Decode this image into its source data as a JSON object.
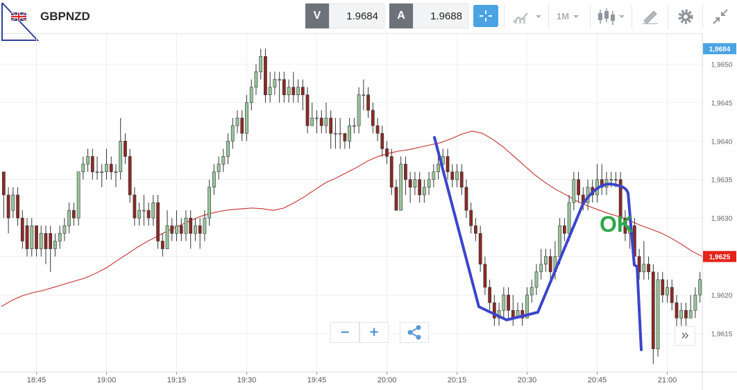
{
  "header": {
    "symbol": "GBPNZD",
    "bid_label": "V",
    "bid_value": "1.9684",
    "ask_label": "A",
    "ask_value": "1.9688",
    "timeframe": "1M",
    "icons": [
      "uk-flag-icon",
      "crosshair-icon",
      "chart-type-icon",
      "candlestick-icon",
      "drawing-tools-icon",
      "gear-icon",
      "collapse-icon"
    ]
  },
  "chart_data": {
    "type": "candlestick",
    "x_ticks": [
      "18:45",
      "19:00",
      "19:15",
      "19:30",
      "19:45",
      "20:00",
      "20:15",
      "20:30",
      "20:45",
      "21:00"
    ],
    "y_ticks": [
      "1,9615",
      "1,9620",
      "1,9625",
      "1,9630",
      "1,9635",
      "1,9640",
      "1,9645",
      "1,9650"
    ],
    "ylim": [
      1.961,
      1.9654
    ],
    "price_labels": [
      {
        "text": "1,9684",
        "value": 1.9652,
        "color": "#4ba3e3"
      },
      {
        "text": "1,9625",
        "value": 1.9625,
        "color": "#e3241b"
      }
    ],
    "candles": [
      [
        1.9636,
        1.9633,
        1.9636,
        1.963
      ],
      [
        1.9633,
        1.963,
        1.9634,
        1.9628
      ],
      [
        1.9631,
        1.9633,
        1.9634,
        1.963
      ],
      [
        1.9633,
        1.963,
        1.9634,
        1.9629
      ],
      [
        1.963,
        1.9627,
        1.9631,
        1.9626
      ],
      [
        1.9629,
        1.9626,
        1.963,
        1.9625
      ],
      [
        1.9626,
        1.9629,
        1.963,
        1.9625
      ],
      [
        1.9629,
        1.9626,
        1.9629,
        1.9625
      ],
      [
        1.9626,
        1.9628,
        1.9629,
        1.9625
      ],
      [
        1.9628,
        1.9626,
        1.9629,
        1.9624
      ],
      [
        1.9628,
        1.9626,
        1.9629,
        1.9623
      ],
      [
        1.9626,
        1.9627,
        1.9628,
        1.9625
      ],
      [
        1.9627,
        1.9628,
        1.9629,
        1.9626
      ],
      [
        1.9628,
        1.9629,
        1.963,
        1.9627
      ],
      [
        1.9629,
        1.9631,
        1.9632,
        1.9628
      ],
      [
        1.9631,
        1.963,
        1.9632,
        1.9629
      ],
      [
        1.963,
        1.9636,
        1.9636,
        1.9629
      ],
      [
        1.9636,
        1.9637,
        1.9638,
        1.9635
      ],
      [
        1.9637,
        1.9638,
        1.9639,
        1.9636
      ],
      [
        1.9638,
        1.9636,
        1.9639,
        1.9635
      ],
      [
        1.9636,
        1.9636,
        1.9638,
        1.9635
      ],
      [
        1.9636,
        1.9636,
        1.9637,
        1.9634
      ],
      [
        1.9636,
        1.9637,
        1.9639,
        1.9635
      ],
      [
        1.9637,
        1.9636,
        1.9638,
        1.9635
      ],
      [
        1.9636,
        1.9636,
        1.9637,
        1.9634
      ],
      [
        1.9636,
        1.964,
        1.9643,
        1.9635
      ],
      [
        1.964,
        1.9638,
        1.9641,
        1.9637
      ],
      [
        1.9638,
        1.9633,
        1.9639,
        1.9632
      ],
      [
        1.9633,
        1.963,
        1.9634,
        1.9629
      ],
      [
        1.963,
        1.9631,
        1.9632,
        1.9629
      ],
      [
        1.9631,
        1.9631,
        1.9633,
        1.9629
      ],
      [
        1.9631,
        1.963,
        1.9632,
        1.9629
      ],
      [
        1.963,
        1.9632,
        1.9633,
        1.9629
      ],
      [
        1.9632,
        1.9627,
        1.9633,
        1.9626
      ],
      [
        1.9627,
        1.9626,
        1.9628,
        1.9625
      ],
      [
        1.9626,
        1.9629,
        1.9631,
        1.9626
      ],
      [
        1.9629,
        1.9628,
        1.963,
        1.9627
      ],
      [
        1.9628,
        1.9629,
        1.9631,
        1.9627
      ],
      [
        1.9629,
        1.9628,
        1.963,
        1.9627
      ],
      [
        1.9628,
        1.963,
        1.9631,
        1.9627
      ],
      [
        1.963,
        1.9628,
        1.9631,
        1.9626
      ],
      [
        1.9628,
        1.9629,
        1.963,
        1.9627
      ],
      [
        1.9629,
        1.9628,
        1.963,
        1.9626
      ],
      [
        1.9628,
        1.963,
        1.9631,
        1.9627
      ],
      [
        1.963,
        1.9634,
        1.9635,
        1.9629
      ],
      [
        1.9634,
        1.9636,
        1.9637,
        1.9633
      ],
      [
        1.9636,
        1.9637,
        1.9638,
        1.9635
      ],
      [
        1.9637,
        1.9638,
        1.9639,
        1.9636
      ],
      [
        1.9638,
        1.964,
        1.9641,
        1.9637
      ],
      [
        1.964,
        1.9642,
        1.9643,
        1.9639
      ],
      [
        1.9642,
        1.9643,
        1.9644,
        1.9641
      ],
      [
        1.9643,
        1.9641,
        1.9644,
        1.964
      ],
      [
        1.9641,
        1.9645,
        1.9646,
        1.964
      ],
      [
        1.9645,
        1.9647,
        1.9648,
        1.9644
      ],
      [
        1.9647,
        1.9649,
        1.965,
        1.9646
      ],
      [
        1.9649,
        1.9651,
        1.9652,
        1.9648
      ],
      [
        1.9651,
        1.9646,
        1.9652,
        1.9645
      ],
      [
        1.9646,
        1.9647,
        1.9649,
        1.9645
      ],
      [
        1.9647,
        1.9648,
        1.9649,
        1.9646
      ],
      [
        1.9648,
        1.9648,
        1.9649,
        1.9645
      ],
      [
        1.9648,
        1.9646,
        1.9649,
        1.9645
      ],
      [
        1.9646,
        1.9647,
        1.9648,
        1.9645
      ],
      [
        1.9647,
        1.9646,
        1.9649,
        1.9645
      ],
      [
        1.9646,
        1.9647,
        1.9648,
        1.9645
      ],
      [
        1.9647,
        1.9646,
        1.9648,
        1.9644
      ],
      [
        1.9646,
        1.9642,
        1.9647,
        1.9641
      ],
      [
        1.9642,
        1.9643,
        1.9645,
        1.9642
      ],
      [
        1.9643,
        1.9643,
        1.9644,
        1.9641
      ],
      [
        1.9643,
        1.9642,
        1.9644,
        1.9641
      ],
      [
        1.9642,
        1.9643,
        1.9645,
        1.9641
      ],
      [
        1.9643,
        1.9641,
        1.9644,
        1.9639
      ],
      [
        1.9641,
        1.9641,
        1.9643,
        1.9639
      ],
      [
        1.9641,
        1.9641,
        1.9643,
        1.9639
      ],
      [
        1.9641,
        1.964,
        1.9641,
        1.9639
      ],
      [
        1.964,
        1.9642,
        1.9643,
        1.9639
      ],
      [
        1.9642,
        1.9642,
        1.9643,
        1.9641
      ],
      [
        1.9642,
        1.9646,
        1.9647,
        1.9641
      ],
      [
        1.9646,
        1.9646,
        1.9648,
        1.9644
      ],
      [
        1.9646,
        1.9644,
        1.9647,
        1.9643
      ],
      [
        1.9644,
        1.9642,
        1.9645,
        1.9641
      ],
      [
        1.9642,
        1.9641,
        1.9643,
        1.964
      ],
      [
        1.9641,
        1.9639,
        1.9642,
        1.9638
      ],
      [
        1.9639,
        1.9638,
        1.964,
        1.9637
      ],
      [
        1.9638,
        1.9634,
        1.9639,
        1.9633
      ],
      [
        1.9634,
        1.9631,
        1.9635,
        1.9631
      ],
      [
        1.9631,
        1.9637,
        1.9638,
        1.9631
      ],
      [
        1.9637,
        1.9635,
        1.9638,
        1.9633
      ],
      [
        1.9635,
        1.9634,
        1.9636,
        1.9632
      ],
      [
        1.9634,
        1.9635,
        1.9636,
        1.9633
      ],
      [
        1.9635,
        1.9633,
        1.9636,
        1.9632
      ],
      [
        1.9633,
        1.9634,
        1.9635,
        1.9632
      ],
      [
        1.9634,
        1.9635,
        1.9636,
        1.9633
      ],
      [
        1.9635,
        1.9636,
        1.9637,
        1.9634
      ],
      [
        1.9636,
        1.9637,
        1.9639,
        1.9635
      ],
      [
        1.9637,
        1.9638,
        1.9639,
        1.9636
      ],
      [
        1.9638,
        1.9636,
        1.9639,
        1.9635
      ],
      [
        1.9636,
        1.9635,
        1.9637,
        1.9634
      ],
      [
        1.9635,
        1.9636,
        1.9637,
        1.9634
      ],
      [
        1.9636,
        1.9634,
        1.9637,
        1.9633
      ],
      [
        1.9634,
        1.9631,
        1.9635,
        1.963
      ],
      [
        1.9631,
        1.9629,
        1.9632,
        1.9628
      ],
      [
        1.9629,
        1.9628,
        1.963,
        1.9627
      ],
      [
        1.9628,
        1.9624,
        1.9629,
        1.9623
      ],
      [
        1.9624,
        1.9621,
        1.9625,
        1.962
      ],
      [
        1.9621,
        1.9619,
        1.9622,
        1.9618
      ],
      [
        1.9619,
        1.9617,
        1.962,
        1.9616
      ],
      [
        1.9617,
        1.9618,
        1.9619,
        1.9616
      ],
      [
        1.9618,
        1.962,
        1.9621,
        1.9617
      ],
      [
        1.962,
        1.9618,
        1.9621,
        1.9617
      ],
      [
        1.9618,
        1.9617,
        1.962,
        1.9616
      ],
      [
        1.9617,
        1.9618,
        1.9619,
        1.9617
      ],
      [
        1.9618,
        1.9617,
        1.9619,
        1.9616
      ],
      [
        1.9617,
        1.962,
        1.9621,
        1.9617
      ],
      [
        1.962,
        1.9621,
        1.9622,
        1.9619
      ],
      [
        1.9621,
        1.9623,
        1.9624,
        1.962
      ],
      [
        1.9623,
        1.9624,
        1.9626,
        1.9622
      ],
      [
        1.9624,
        1.9625,
        1.9626,
        1.9623
      ],
      [
        1.9625,
        1.9623,
        1.9626,
        1.9622
      ],
      [
        1.9623,
        1.9625,
        1.9627,
        1.9622
      ],
      [
        1.9625,
        1.9629,
        1.963,
        1.9624
      ],
      [
        1.9629,
        1.9628,
        1.963,
        1.9627
      ],
      [
        1.9628,
        1.9632,
        1.9633,
        1.9627
      ],
      [
        1.9632,
        1.9635,
        1.9636,
        1.9631
      ],
      [
        1.9635,
        1.9633,
        1.9636,
        1.9632
      ],
      [
        1.9633,
        1.9632,
        1.9634,
        1.9631
      ],
      [
        1.9632,
        1.9634,
        1.9635,
        1.9631
      ],
      [
        1.9634,
        1.9633,
        1.9635,
        1.9632
      ],
      [
        1.9633,
        1.9635,
        1.9637,
        1.9632
      ],
      [
        1.9635,
        1.9634,
        1.9637,
        1.9633
      ],
      [
        1.9634,
        1.9635,
        1.9636,
        1.9633
      ],
      [
        1.9635,
        1.9635,
        1.9636,
        1.9634
      ],
      [
        1.9635,
        1.9635,
        1.9636,
        1.9634
      ],
      [
        1.9635,
        1.963,
        1.9636,
        1.9629
      ],
      [
        1.963,
        1.9628,
        1.9631,
        1.9627
      ],
      [
        1.9628,
        1.9629,
        1.963,
        1.9626
      ],
      [
        1.9629,
        1.9625,
        1.963,
        1.9624
      ],
      [
        1.9625,
        1.9623,
        1.9626,
        1.9622
      ],
      [
        1.9623,
        1.9624,
        1.9627,
        1.9622
      ],
      [
        1.9624,
        1.9623,
        1.9625,
        1.9622
      ],
      [
        1.9623,
        1.9613,
        1.9624,
        1.9611
      ],
      [
        1.9613,
        1.9622,
        1.9623,
        1.9612
      ],
      [
        1.9622,
        1.962,
        1.9623,
        1.9619
      ],
      [
        1.962,
        1.9621,
        1.9622,
        1.9619
      ],
      [
        1.9621,
        1.9619,
        1.9622,
        1.9618
      ],
      [
        1.9619,
        1.9617,
        1.962,
        1.9616
      ],
      [
        1.9617,
        1.9618,
        1.9619,
        1.9616
      ],
      [
        1.9618,
        1.9617,
        1.9619,
        1.9616
      ],
      [
        1.9617,
        1.9618,
        1.962,
        1.9617
      ],
      [
        1.9618,
        1.962,
        1.9621,
        1.9617
      ],
      [
        1.962,
        1.9622,
        1.9623,
        1.9619
      ]
    ],
    "moving_average": [
      1.96185,
      1.96193,
      1.96199,
      1.96203,
      1.96206,
      1.9621,
      1.96214,
      1.96218,
      1.96222,
      1.96228,
      1.96235,
      1.96244,
      1.96253,
      1.96262,
      1.9627,
      1.96277,
      1.96284,
      1.9629,
      1.96296,
      1.96302,
      1.96306,
      1.96309,
      1.96311,
      1.96312,
      1.96313,
      1.96312,
      1.9631,
      1.96313,
      1.9632,
      1.96328,
      1.96337,
      1.96346,
      1.96352,
      1.96359,
      1.96366,
      1.96374,
      1.9638,
      1.96384,
      1.96387,
      1.96389,
      1.96392,
      1.96395,
      1.96398,
      1.96403,
      1.96409,
      1.96413,
      1.9641,
      1.96402,
      1.96392,
      1.9638,
      1.96368,
      1.96356,
      1.96346,
      1.96337,
      1.9633,
      1.96322,
      1.96316,
      1.96311,
      1.96306,
      1.96302,
      1.96297,
      1.96291,
      1.96286,
      1.96281,
      1.96274,
      1.96266,
      1.96257,
      1.9625
    ],
    "annotations": [
      {
        "type": "text",
        "text": "OK",
        "color": "#2ca84a"
      },
      {
        "type": "freehand",
        "color": "#3c45c9"
      }
    ],
    "grid": true,
    "colors": {
      "bull": "#98c49a",
      "bear": "#8b2a25",
      "ma": "#c74040",
      "grid": "#eceff1"
    }
  },
  "controls": {
    "zoom_out": "−",
    "zoom_in": "+",
    "more": "»"
  }
}
